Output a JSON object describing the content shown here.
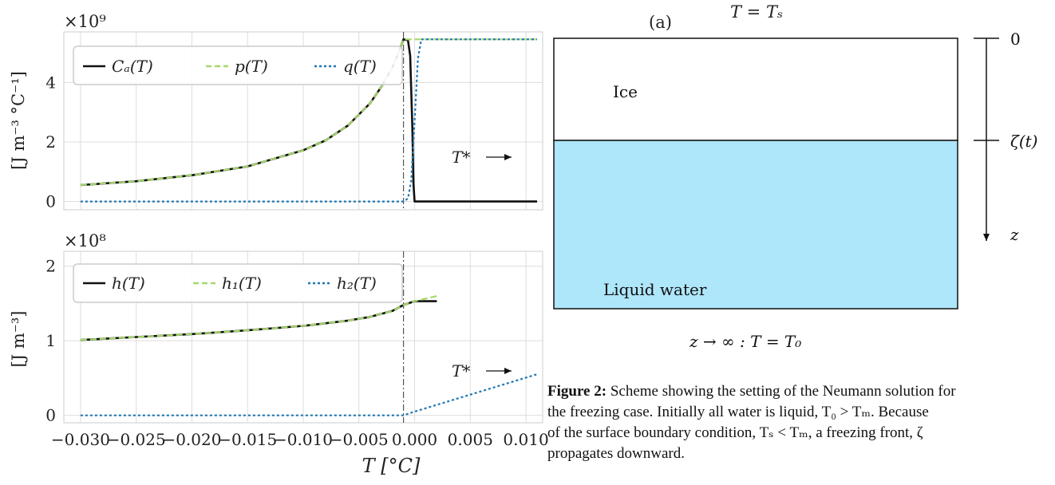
{
  "chart_data": [
    {
      "type": "line",
      "panel": "top",
      "multiplier": "×10⁹",
      "ylabel": "[J m⁻³ °C⁻¹]",
      "xlim": [
        -0.0315,
        0.0115
      ],
      "ylim": [
        -0.28,
        5.7
      ],
      "yticks": [
        0,
        2,
        4
      ],
      "xticks": [
        -0.03,
        -0.025,
        -0.02,
        -0.015,
        -0.01,
        -0.005,
        0.0,
        0.005,
        0.01
      ],
      "vline_x": -0.001,
      "annotation": "T*",
      "legend": "top-left",
      "grid": true,
      "series": [
        {
          "name": "Cₐ(T)",
          "style": "solid",
          "color": "#111111",
          "x": [
            -0.03,
            -0.025,
            -0.02,
            -0.015,
            -0.01,
            -0.008,
            -0.006,
            -0.004,
            -0.003,
            -0.002,
            -0.0015,
            -0.001,
            -0.0006,
            -0.0004,
            -0.0002,
            -0.0001,
            0.0,
            0.011
          ],
          "y": [
            0.55,
            0.68,
            0.88,
            1.18,
            1.72,
            2.05,
            2.55,
            3.3,
            3.85,
            4.5,
            4.95,
            5.45,
            5.42,
            4.9,
            2.5,
            0.6,
            0.0,
            0.0
          ]
        },
        {
          "name": "p(T)",
          "style": "dashed",
          "color": "#a6d96a",
          "x": [
            -0.03,
            -0.025,
            -0.02,
            -0.015,
            -0.01,
            -0.008,
            -0.006,
            -0.004,
            -0.003,
            -0.002,
            -0.0015,
            -0.001,
            0.0005,
            0.011
          ],
          "y": [
            0.55,
            0.68,
            0.88,
            1.18,
            1.72,
            2.05,
            2.55,
            3.3,
            3.85,
            4.5,
            4.95,
            5.45,
            5.45,
            5.45
          ]
        },
        {
          "name": "q(T)",
          "style": "dotted",
          "color": "#1f77b4",
          "x": [
            -0.03,
            -0.001,
            -0.0006,
            -0.0003,
            0.0,
            0.0003,
            0.0006,
            0.011
          ],
          "y": [
            0.0,
            0.0,
            0.1,
            0.7,
            2.7,
            4.8,
            5.45,
            5.45
          ]
        }
      ]
    },
    {
      "type": "line",
      "panel": "bottom",
      "multiplier": "×10⁸",
      "ylabel": "[J m⁻³]",
      "xlabel": "T [°C]",
      "xlim": [
        -0.0315,
        0.0115
      ],
      "ylim": [
        -0.1,
        2.2
      ],
      "yticks": [
        0,
        1,
        2
      ],
      "xticks": [
        -0.03,
        -0.025,
        -0.02,
        -0.015,
        -0.01,
        -0.005,
        0.0,
        0.005,
        0.01
      ],
      "xtick_labels": [
        "−0.030",
        "−0.025",
        "−0.020",
        "−0.015",
        "−0.010",
        "−0.005",
        "0.000",
        "0.005",
        "0.010"
      ],
      "vline_x": -0.001,
      "annotation": "T*",
      "legend": "top-left",
      "grid": true,
      "series": [
        {
          "name": "h(T)",
          "style": "solid",
          "color": "#111111",
          "x": [
            -0.03,
            -0.025,
            -0.02,
            -0.015,
            -0.01,
            -0.006,
            -0.004,
            -0.002,
            -0.001,
            0.0,
            0.002
          ],
          "y": [
            1.01,
            1.05,
            1.09,
            1.14,
            1.2,
            1.27,
            1.32,
            1.4,
            1.48,
            1.53,
            1.53
          ]
        },
        {
          "name": "h₁(T)",
          "style": "dashed",
          "color": "#a6d96a",
          "x": [
            -0.03,
            -0.025,
            -0.02,
            -0.015,
            -0.01,
            -0.006,
            -0.004,
            -0.002,
            -0.001,
            0.0,
            0.002
          ],
          "y": [
            1.01,
            1.05,
            1.09,
            1.14,
            1.2,
            1.27,
            1.32,
            1.4,
            1.48,
            1.53,
            1.6
          ]
        },
        {
          "name": "h₂(T)",
          "style": "dotted",
          "color": "#1f77b4",
          "x": [
            -0.03,
            -0.001,
            0.0,
            0.011
          ],
          "y": [
            0.0,
            0.0,
            0.05,
            0.55
          ]
        }
      ]
    }
  ],
  "diagram": {
    "panel_label": "(a)",
    "surface_condition": "T = Tₛ",
    "ice_label": "Ice",
    "water_label": "Liquid water",
    "depth_zero": "0",
    "front_label": "ζ(t)",
    "axis_label": "z",
    "deep_condition": "z → ∞ : T = T₀",
    "colors": {
      "ice": "#ffffff",
      "water": "#aee6fa",
      "border": "#111111"
    }
  },
  "caption": {
    "label": "Figure 2:",
    "lines": [
      " Scheme showing the setting of the Neumann solution for",
      "the freezing case. Initially all water is liquid, T₀ > Tₘ. Because",
      "of the surface boundary condition, Tₛ < Tₘ, a freezing front, ζ",
      "propagates downward."
    ]
  }
}
